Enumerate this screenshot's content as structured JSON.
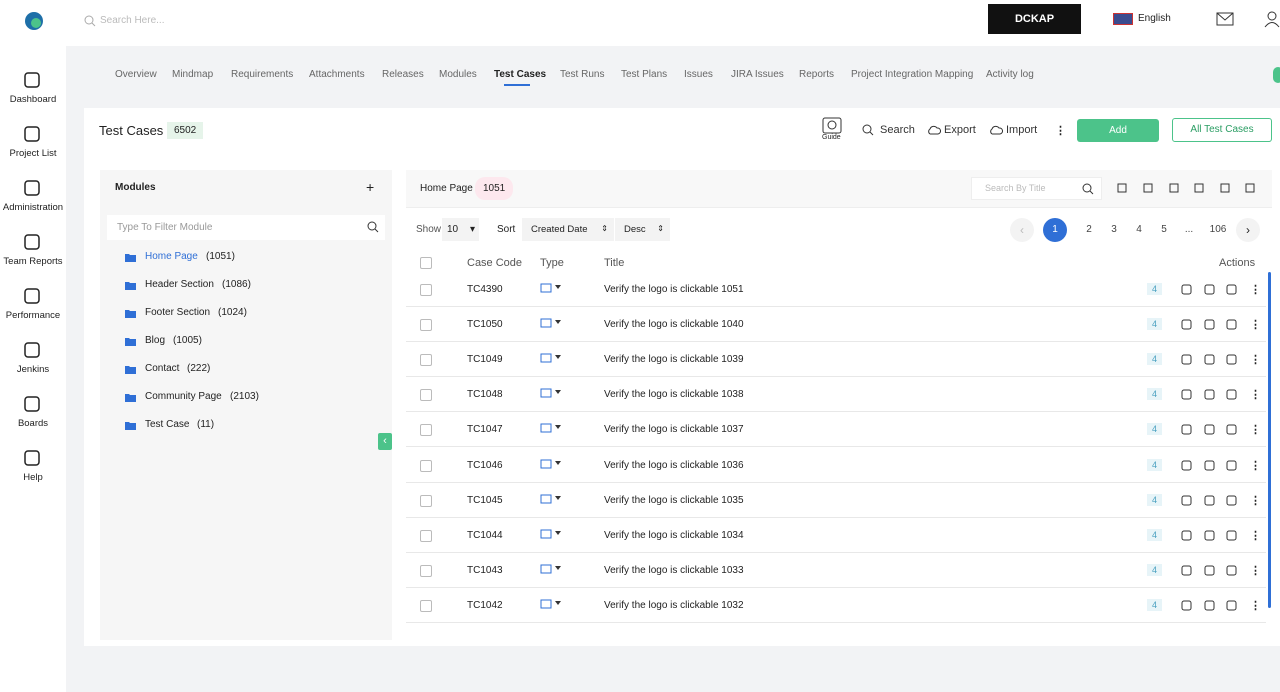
{
  "header": {
    "search_placeholder": "Search Here...",
    "brand": "DCKAP",
    "language": "English"
  },
  "sidebar": {
    "items": [
      "Dashboard",
      "Project List",
      "Administration",
      "Team Reports",
      "Performance",
      "Jenkins",
      "Boards",
      "Help"
    ]
  },
  "tabs": {
    "items": [
      "Overview",
      "Mindmap",
      "Requirements",
      "Attachments",
      "Releases",
      "Modules",
      "Test Cases",
      "Test Runs",
      "Test Plans",
      "Issues",
      "JIRA Issues",
      "Reports",
      "Project Integration Mapping",
      "Activity log"
    ],
    "active": 6
  },
  "page": {
    "title": "Test Cases",
    "count": "6502",
    "guide": "Guide",
    "search": "Search",
    "export": "Export",
    "import": "Import",
    "add": "Add",
    "all": "All Test Cases"
  },
  "modules": {
    "title": "Modules",
    "filter_placeholder": "Type To Filter Module",
    "active": 0,
    "items": [
      {
        "name": "Home Page",
        "count": "(1051)"
      },
      {
        "name": "Header Section",
        "count": "(1086)"
      },
      {
        "name": "Footer Section",
        "count": "(1024)"
      },
      {
        "name": "Blog",
        "count": "(1005)"
      },
      {
        "name": "Contact",
        "count": "(222)"
      },
      {
        "name": "Community Page",
        "count": "(2103)"
      },
      {
        "name": "Test Case",
        "count": "(11)"
      }
    ]
  },
  "table": {
    "module": "Home Page",
    "count": "1051",
    "search_placeholder": "Search By Title",
    "show": "Show",
    "page_size": "10",
    "sort": "Sort",
    "sort_field": "Created Date",
    "order": "Desc",
    "pages": [
      "1",
      "2",
      "3",
      "4",
      "5",
      "...",
      "106"
    ],
    "current_page": 0,
    "headers": [
      "Case Code",
      "Type",
      "Title",
      "Actions"
    ],
    "rows": [
      {
        "code": "TC4390",
        "title": "Verify the logo is clickable 1051",
        "badge": "4"
      },
      {
        "code": "TC1050",
        "title": "Verify the logo is clickable 1040",
        "badge": "4"
      },
      {
        "code": "TC1049",
        "title": "Verify the logo is clickable 1039",
        "badge": "4"
      },
      {
        "code": "TC1048",
        "title": "Verify the logo is clickable 1038",
        "badge": "4"
      },
      {
        "code": "TC1047",
        "title": "Verify the logo is clickable 1037",
        "badge": "4"
      },
      {
        "code": "TC1046",
        "title": "Verify the logo is clickable 1036",
        "badge": "4"
      },
      {
        "code": "TC1045",
        "title": "Verify the logo is clickable 1035",
        "badge": "4"
      },
      {
        "code": "TC1044",
        "title": "Verify the logo is clickable 1034",
        "badge": "4"
      },
      {
        "code": "TC1043",
        "title": "Verify the logo is clickable 1033",
        "badge": "4"
      },
      {
        "code": "TC1042",
        "title": "Verify the logo is clickable 1032",
        "badge": "4"
      }
    ]
  }
}
